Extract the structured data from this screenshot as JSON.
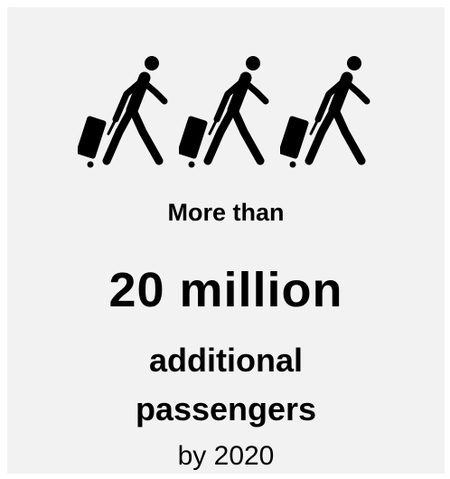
{
  "icons": {
    "walker_icon": "person-walking-with-luggage-icon",
    "count": 3
  },
  "text": {
    "more_than": "More than",
    "number": "20 million",
    "additional": "additional",
    "passengers": "passengers",
    "by_year": "by 2020"
  },
  "colors": {
    "background": "#f2f2f2",
    "text": "#000000",
    "icon": "#000000"
  }
}
